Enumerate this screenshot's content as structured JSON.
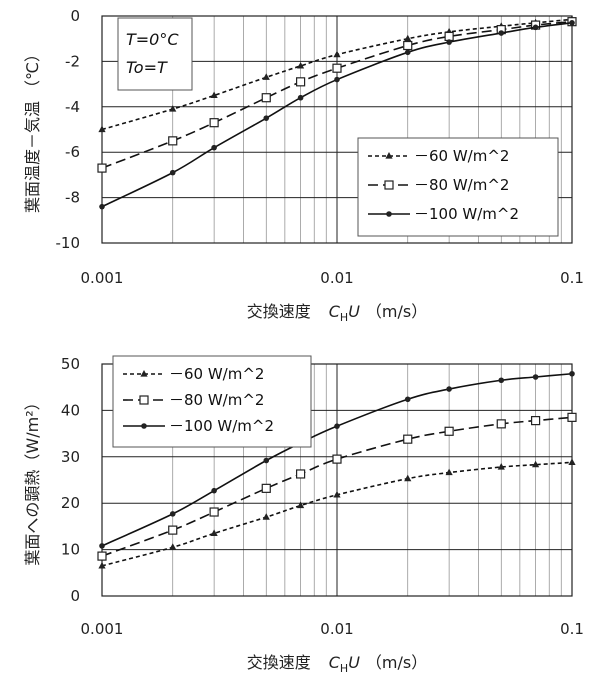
{
  "chart_data": [
    {
      "type": "line",
      "x_scale": "log",
      "xlim": [
        0.001,
        0.1
      ],
      "ylim": [
        -10,
        0
      ],
      "yticks": [
        0,
        -2,
        -4,
        -6,
        -8,
        -10
      ],
      "xtick_labels": [
        "0.001",
        "0.01",
        "0.1"
      ],
      "ytick_labels": [
        "0",
        "-2",
        "-4",
        "-6",
        "-8",
        "-10"
      ],
      "xlabel_prefix": "交換速度",
      "xlabel_var": "C",
      "xlabel_sub": "H",
      "xlabel_var2": "U",
      "xlabel_unit": "（m/s）",
      "ylabel": "葉面温度－気温 （℃）",
      "annotation": [
        "T=0°C",
        "To=T"
      ],
      "legend_position": "right-middle",
      "grid": true,
      "series": [
        {
          "name": "－60 W/m^2",
          "marker": "triangle",
          "dash": "dotted",
          "x": [
            0.001,
            0.002,
            0.003,
            0.005,
            0.007,
            0.01,
            0.02,
            0.03,
            0.05,
            0.07,
            0.1
          ],
          "y": [
            -5.0,
            -4.1,
            -3.5,
            -2.7,
            -2.2,
            -1.7,
            -1.0,
            -0.7,
            -0.45,
            -0.3,
            -0.15
          ]
        },
        {
          "name": "－80 W/m^2",
          "marker": "square",
          "dash": "dashed",
          "x": [
            0.001,
            0.002,
            0.003,
            0.005,
            0.007,
            0.01,
            0.02,
            0.03,
            0.05,
            0.07,
            0.1
          ],
          "y": [
            -6.7,
            -5.5,
            -4.7,
            -3.6,
            -2.9,
            -2.3,
            -1.3,
            -0.9,
            -0.6,
            -0.4,
            -0.25
          ]
        },
        {
          "name": "－100 W/m^2",
          "marker": "dot",
          "dash": "solid",
          "x": [
            0.001,
            0.002,
            0.003,
            0.005,
            0.007,
            0.01,
            0.02,
            0.03,
            0.05,
            0.07,
            0.1
          ],
          "y": [
            -8.4,
            -6.9,
            -5.8,
            -4.5,
            -3.6,
            -2.8,
            -1.6,
            -1.15,
            -0.75,
            -0.5,
            -0.3
          ]
        }
      ]
    },
    {
      "type": "line",
      "x_scale": "log",
      "xlim": [
        0.001,
        0.1
      ],
      "ylim": [
        0,
        50
      ],
      "yticks": [
        0,
        10,
        20,
        30,
        40,
        50
      ],
      "xtick_labels": [
        "0.001",
        "0.01",
        "0.1"
      ],
      "ytick_labels": [
        "0",
        "10",
        "20",
        "30",
        "40",
        "50"
      ],
      "xlabel_prefix": "交換速度",
      "xlabel_var": "C",
      "xlabel_sub": "H",
      "xlabel_var2": "U",
      "xlabel_unit": "（m/s）",
      "ylabel": "葉面への顕熱（W/m²）",
      "legend_position": "top-left",
      "grid": true,
      "series": [
        {
          "name": "－60 W/m^2",
          "marker": "triangle",
          "dash": "dotted",
          "x": [
            0.001,
            0.002,
            0.003,
            0.005,
            0.007,
            0.01,
            0.02,
            0.03,
            0.05,
            0.07,
            0.1
          ],
          "y": [
            6.5,
            10.5,
            13.5,
            17.0,
            19.5,
            21.8,
            25.3,
            26.6,
            27.8,
            28.3,
            28.8
          ]
        },
        {
          "name": "－80 W/m^2",
          "marker": "square",
          "dash": "dashed",
          "x": [
            0.001,
            0.002,
            0.003,
            0.005,
            0.007,
            0.01,
            0.02,
            0.03,
            0.05,
            0.07,
            0.1
          ],
          "y": [
            8.6,
            14.2,
            18.1,
            23.2,
            26.3,
            29.5,
            33.8,
            35.5,
            37.1,
            37.8,
            38.5
          ]
        },
        {
          "name": "－100 W/m^2",
          "marker": "dot",
          "dash": "solid",
          "x": [
            0.001,
            0.002,
            0.003,
            0.005,
            0.007,
            0.01,
            0.02,
            0.03,
            0.05,
            0.07,
            0.1
          ],
          "y": [
            10.8,
            17.7,
            22.7,
            29.2,
            33.0,
            36.6,
            42.4,
            44.6,
            46.5,
            47.2,
            47.9
          ]
        }
      ]
    }
  ]
}
